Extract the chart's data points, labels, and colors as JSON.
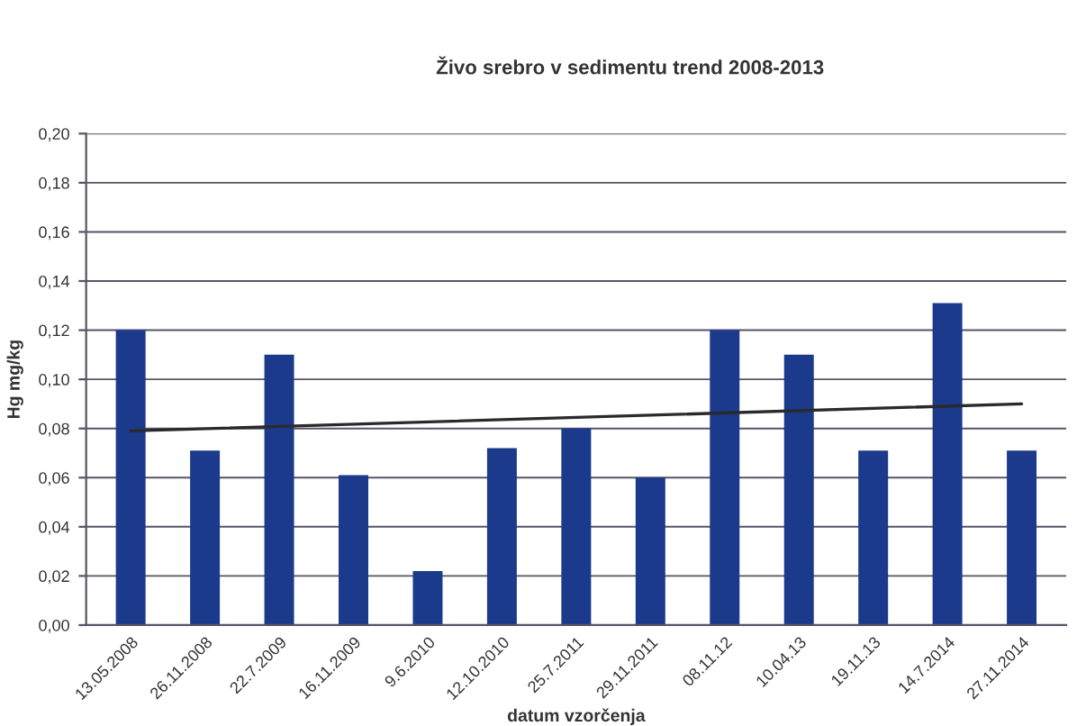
{
  "chart_data": {
    "type": "bar",
    "title": "Živo srebro v sedimentu trend 2008-2013",
    "xlabel": "datum vzorčenja",
    "ylabel": "Hg mg/kg",
    "categories": [
      "13.05.2008",
      "26.11.2008",
      "22.7.2009",
      "16.11.2009",
      "9.6.2010",
      "12.10.2010",
      "25.7.2011",
      "29.11.2011",
      "08.11.12",
      "10.04.13",
      "19.11.13",
      "14.7.2014",
      "27.11.2014"
    ],
    "series": [
      {
        "color": "#1b3a8c",
        "values": [
          0.12,
          0.071,
          0.11,
          0.061,
          0.022,
          0.072,
          0.08,
          0.06,
          0.12,
          0.11,
          0.071,
          0.131,
          0.071
        ]
      },
      {
        "type": "line",
        "color": "#2a2a2a",
        "x": [
          "13.05.2008",
          "27.11.2014"
        ],
        "values": [
          0.079,
          0.09
        ]
      }
    ],
    "ylim": [
      0,
      0.2
    ],
    "yticks": [
      {
        "value": 0,
        "label": "0,00"
      },
      {
        "value": 0.02,
        "label": "0,02"
      },
      {
        "value": 0.04,
        "label": "0,04"
      },
      {
        "value": 0.06,
        "label": "0,06"
      },
      {
        "value": 0.08,
        "label": "0,08"
      },
      {
        "value": 0.1,
        "label": "0,10"
      },
      {
        "value": 0.12,
        "label": "0,12"
      },
      {
        "value": 0.14,
        "label": "0,14"
      },
      {
        "value": 0.16,
        "label": "0,16"
      },
      {
        "value": 0.18,
        "label": "0,18"
      },
      {
        "value": 0.2,
        "label": "0,20"
      }
    ],
    "grid": "y"
  }
}
